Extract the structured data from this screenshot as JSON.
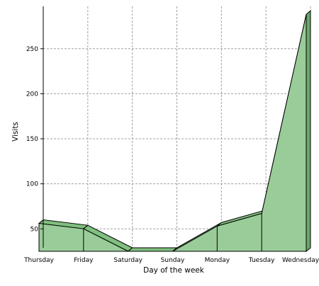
{
  "chart_data": {
    "type": "area",
    "title": "",
    "xlabel": "Day of the week",
    "ylabel": "Visits",
    "categories": [
      "Thursday",
      "Friday",
      "Saturday",
      "Sunday",
      "Monday",
      "Tuesday",
      "Wednesday"
    ],
    "series": [
      {
        "values": [
          60,
          54,
          29,
          29,
          57,
          71,
          292
        ]
      }
    ],
    "ylim": [
      29,
      297
    ],
    "yticks": [
      50,
      100,
      150,
      200,
      250
    ],
    "grid": true,
    "legend": "none",
    "style": "3d",
    "colors": {
      "fill": "#99cc99",
      "top_face": "#7fbf7f",
      "outline": "#000000",
      "grid": "#a0a0a0",
      "axis": "#000000"
    }
  }
}
